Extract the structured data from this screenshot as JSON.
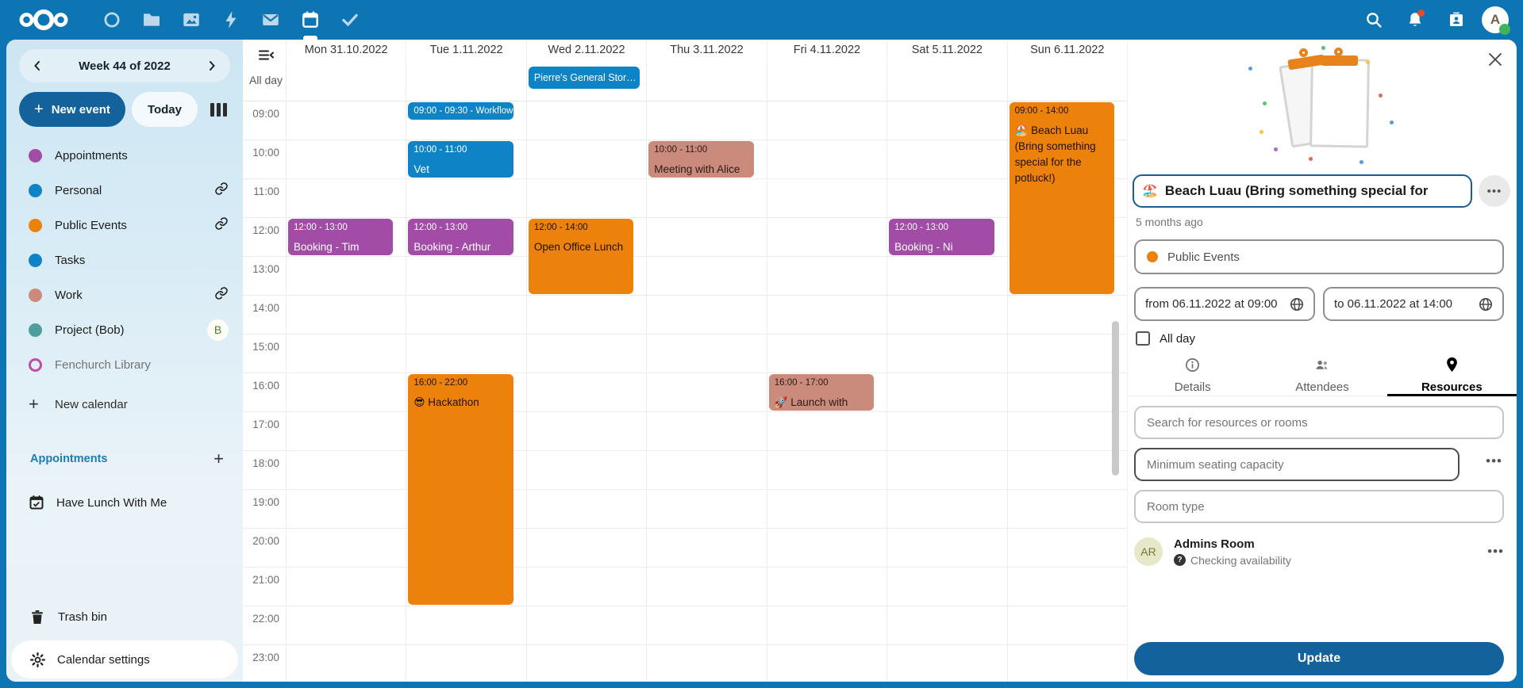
{
  "topbar": {
    "logo_icon": "nextcloud-logo",
    "apps": [
      "dashboard",
      "files",
      "photos",
      "activity",
      "mail",
      "calendar",
      "tasks"
    ],
    "active_app": "calendar",
    "right_icons": [
      "search",
      "notifications",
      "contacts",
      "avatar"
    ],
    "notification_badge": true,
    "user_initial": "A",
    "bar_color": "#0e75b5"
  },
  "sidebar": {
    "week_label": "Week 44 of 2022",
    "prev_icon": "chevron-left-icon",
    "next_icon": "chevron-right-icon",
    "new_event_label": "New event",
    "today_label": "Today",
    "view_icon": "week-view-icon",
    "calendars": [
      {
        "label": "Appointments",
        "color": "#a24ba7",
        "badge": null,
        "muted": false,
        "outline": false
      },
      {
        "label": "Personal",
        "color": "#0e84c6",
        "badge": "link",
        "muted": false,
        "outline": false
      },
      {
        "label": "Public Events",
        "color": "#ec810b",
        "badge": "link",
        "muted": false,
        "outline": false
      },
      {
        "label": "Tasks",
        "color": "#0e84c6",
        "badge": null,
        "muted": false,
        "outline": false
      },
      {
        "label": "Work",
        "color": "#ca8a7c",
        "badge": "link",
        "muted": false,
        "outline": false
      },
      {
        "label": "Project (Bob)",
        "color": "#4f9e9e",
        "badge": "B",
        "muted": false,
        "outline": false
      },
      {
        "label": "Fenchurch Library",
        "color": "#c24ca4",
        "badge": null,
        "muted": true,
        "outline": true
      }
    ],
    "new_calendar_label": "New calendar",
    "appointments_heading": "Appointments",
    "appointment_items": [
      "Have Lunch With Me"
    ],
    "trash_label": "Trash bin",
    "settings_label": "Calendar settings"
  },
  "calendar": {
    "all_day_label": "All day",
    "days": [
      "Mon 31.10.2022",
      "Tue 1.11.2022",
      "Wed 2.11.2022",
      "Thu 3.11.2022",
      "Fri 4.11.2022",
      "Sat 5.11.2022",
      "Sun 6.11.2022"
    ],
    "times": [
      "09:00",
      "10:00",
      "11:00",
      "12:00",
      "13:00",
      "14:00",
      "15:00",
      "16:00",
      "17:00",
      "18:00",
      "19:00",
      "20:00",
      "21:00",
      "22:00",
      "23:00"
    ],
    "palette": {
      "blue": {
        "bg": "#0e84c6",
        "fg": "#ffffff"
      },
      "purple": {
        "bg": "#a24ba7",
        "fg": "#ffffff"
      },
      "orange": {
        "bg": "#ec810b",
        "fg": "#1d1205"
      },
      "salmon": {
        "bg": "#ca8a7c",
        "fg": "#2d1b16"
      }
    },
    "events": [
      {
        "day": 2,
        "all_day": true,
        "calendar": "blue",
        "title": "Pierre's General Stor…"
      },
      {
        "day": 0,
        "start": 12,
        "end": 13,
        "calendar": "purple",
        "time": "12:00 - 13:00",
        "title": "Booking - Tim (Wizard)"
      },
      {
        "day": 1,
        "start": 9,
        "end": 9.5,
        "calendar": "blue",
        "time": "09:00 - 09:30",
        "title": "Workflow",
        "one_line": true
      },
      {
        "day": 1,
        "start": 10,
        "end": 11,
        "calendar": "blue",
        "time": "10:00 - 11:00",
        "title": "Vet"
      },
      {
        "day": 1,
        "start": 12,
        "end": 13,
        "calendar": "purple",
        "time": "12:00 - 13:00",
        "title": "Booking - Arthur Dent"
      },
      {
        "day": 1,
        "start": 16,
        "end": 22,
        "calendar": "orange",
        "time": "16:00 - 22:00",
        "emoji": "😎",
        "title": "Hackathon"
      },
      {
        "day": 2,
        "start": 12,
        "end": 14,
        "calendar": "orange",
        "time": "12:00 - 14:00",
        "title": "Open Office Lunch"
      },
      {
        "day": 3,
        "start": 10,
        "end": 11,
        "calendar": "salmon",
        "time": "10:00 - 11:00",
        "title": "Meeting with Alice"
      },
      {
        "day": 4,
        "start": 16,
        "end": 17,
        "calendar": "salmon",
        "time": "16:00 - 17:00",
        "emoji": "🚀",
        "title": "Launch with Elon"
      },
      {
        "day": 5,
        "start": 12,
        "end": 13,
        "calendar": "purple",
        "time": "12:00 - 13:00",
        "title": "Booking - Ni (Knights"
      },
      {
        "day": 6,
        "start": 9,
        "end": 14,
        "calendar": "orange",
        "time": "09:00 - 14:00",
        "emoji": "🏖️",
        "title": "Beach Luau (Bring something special for the potluck!)"
      }
    ]
  },
  "panel": {
    "close_icon": "close-icon",
    "title_emoji": "🏖️",
    "title_value": "Beach Luau (Bring something special for",
    "more_label": "•••",
    "modified_ago": "5 months ago",
    "category": {
      "label": "Public Events",
      "color": "#ec810b"
    },
    "from_value": "from 06.11.2022 at 09:00",
    "to_value": "to 06.11.2022 at 14:00",
    "all_day_label": "All day",
    "all_day_checked": false,
    "tabs": [
      {
        "label": "Details",
        "icon": "info-icon",
        "active": false
      },
      {
        "label": "Attendees",
        "icon": "people-icon",
        "active": false
      },
      {
        "label": "Resources",
        "icon": "location-icon",
        "active": true
      }
    ],
    "search_placeholder": "Search for resources or rooms",
    "seating_placeholder": "Minimum seating capacity",
    "roomtype_placeholder": "Room type",
    "resource": {
      "initials": "AR",
      "name": "Admins Room",
      "status": "Checking availability"
    },
    "update_label": "Update"
  }
}
